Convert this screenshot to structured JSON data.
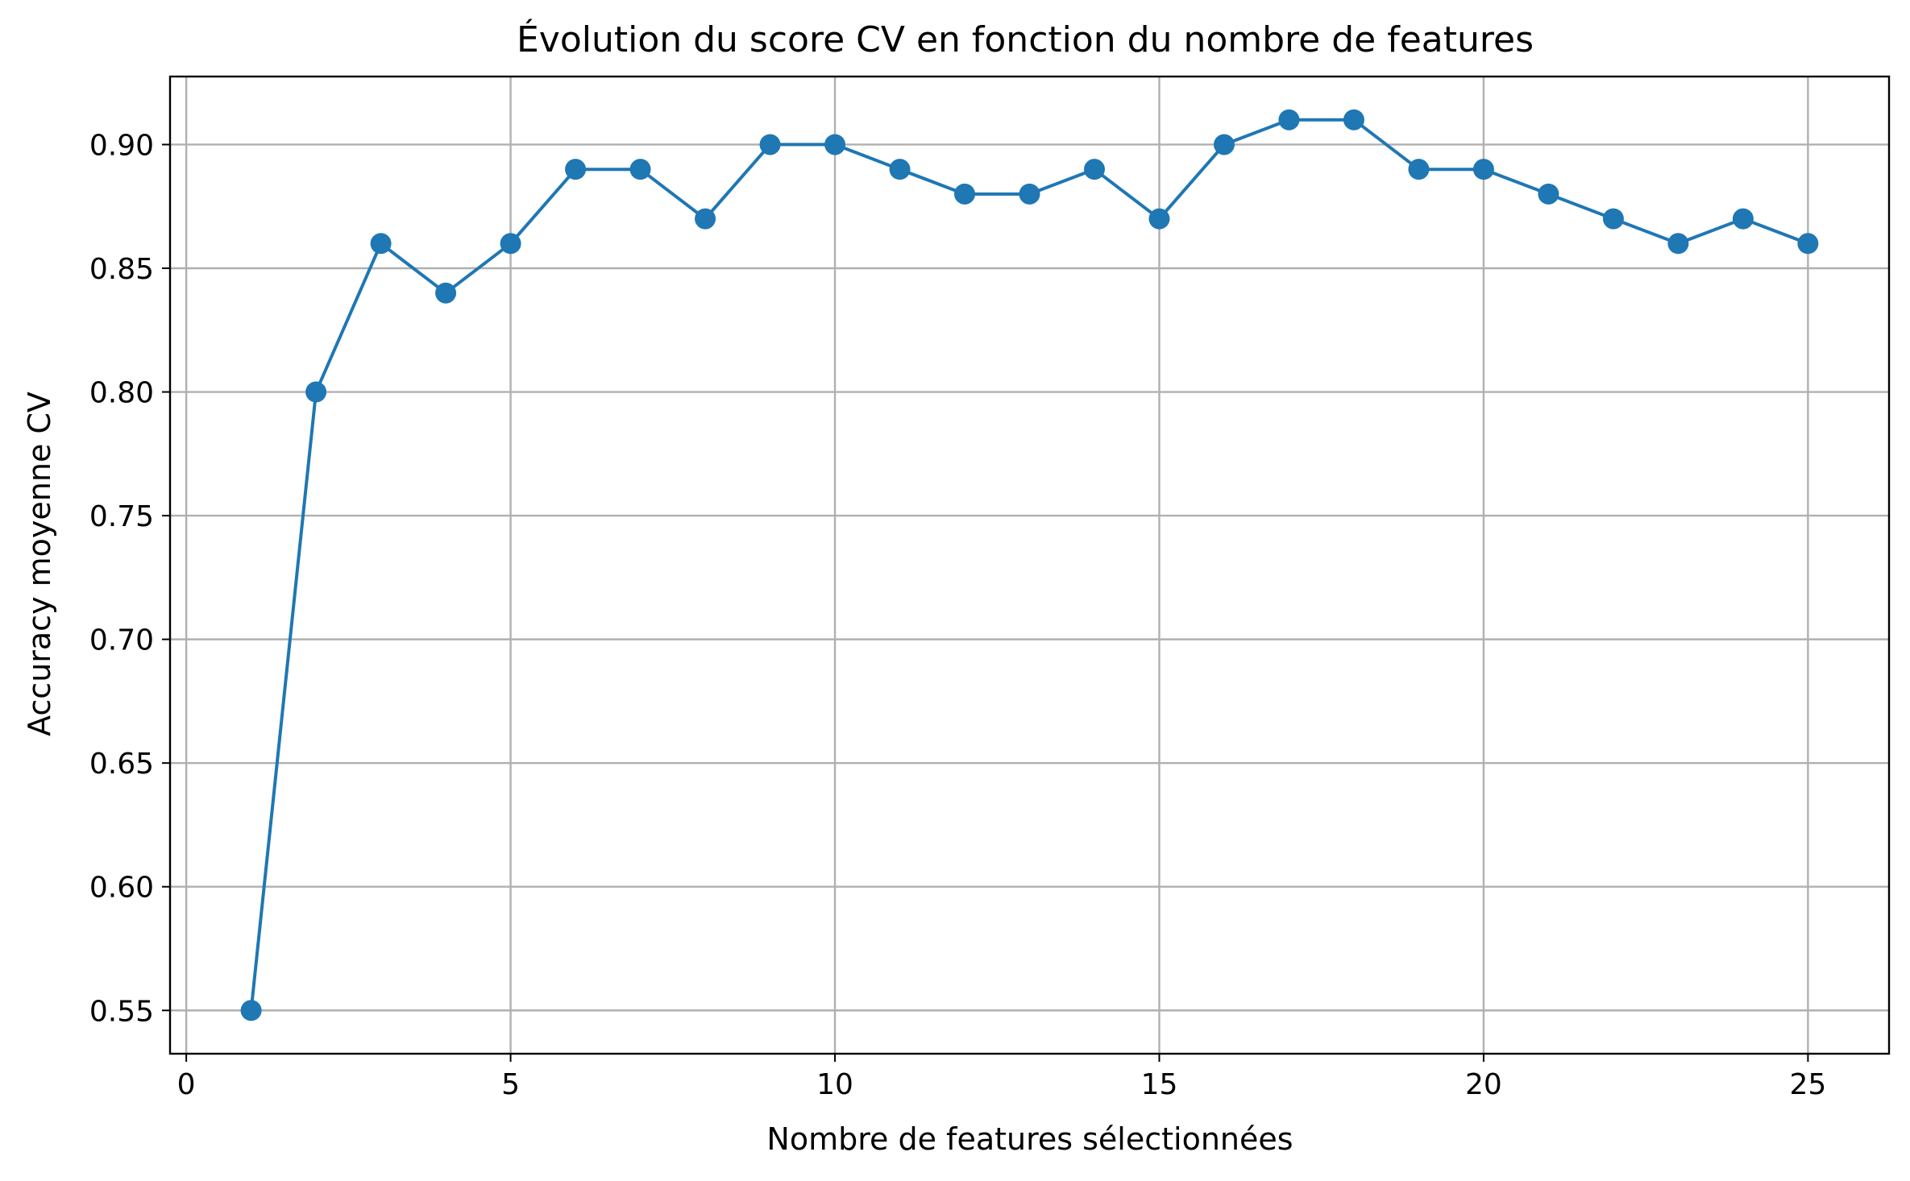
{
  "chart_data": {
    "type": "line",
    "title": "Évolution du score CV en fonction du nombre de features",
    "xlabel": "Nombre de features sélectionnées",
    "ylabel": "Accuracy moyenne CV",
    "xlim": [
      -0.25,
      26.25
    ],
    "ylim": [
      0.5325,
      0.9275
    ],
    "xticks": [
      0,
      5,
      10,
      15,
      20,
      25
    ],
    "xtick_labels": [
      "0",
      "5",
      "10",
      "15",
      "20",
      "25"
    ],
    "yticks": [
      0.55,
      0.6,
      0.65,
      0.7,
      0.75,
      0.8,
      0.85,
      0.9
    ],
    "ytick_labels": [
      "0.55",
      "0.60",
      "0.65",
      "0.70",
      "0.75",
      "0.80",
      "0.85",
      "0.90"
    ],
    "grid": true,
    "marker": "circle",
    "color": "#1f77b4",
    "x": [
      1,
      2,
      3,
      4,
      5,
      6,
      7,
      8,
      9,
      10,
      11,
      12,
      13,
      14,
      15,
      16,
      17,
      18,
      19,
      20,
      21,
      22,
      23,
      24,
      25
    ],
    "y": [
      0.55,
      0.8,
      0.86,
      0.84,
      0.86,
      0.89,
      0.89,
      0.87,
      0.9,
      0.9,
      0.89,
      0.88,
      0.88,
      0.89,
      0.87,
      0.9,
      0.91,
      0.91,
      0.89,
      0.89,
      0.88,
      0.87,
      0.86,
      0.87,
      0.86
    ]
  }
}
